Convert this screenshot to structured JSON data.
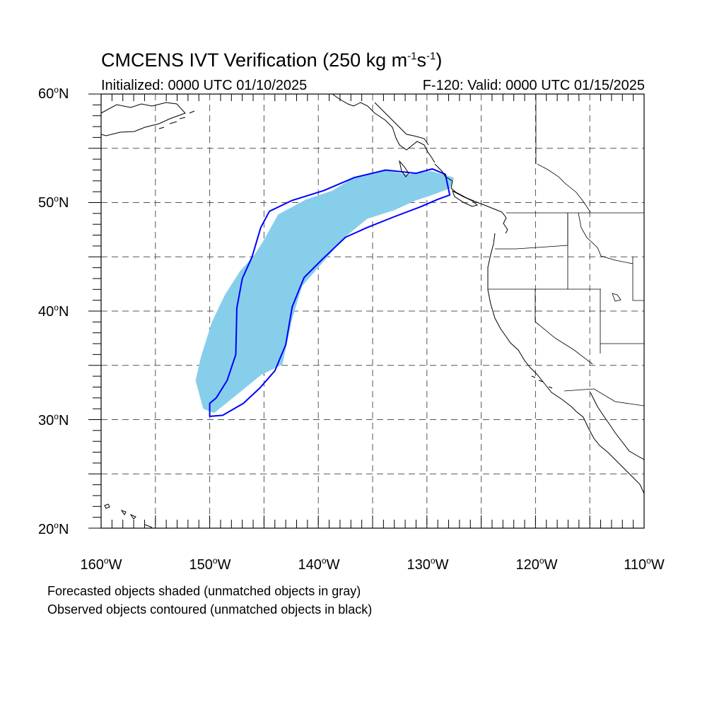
{
  "title": {
    "prefix": "CMCENS IVT Verification (250 kg m",
    "exp1": "-1",
    "mid": "s",
    "exp2": "-1",
    "suffix": ")"
  },
  "subtitle_left": "Initialized: 0000 UTC 01/10/2025",
  "subtitle_right": "F-120: Valid: 0000 UTC 01/15/2025",
  "axes": {
    "lat_labels": [
      "60",
      "50",
      "40",
      "30",
      "20"
    ],
    "lat_suffix": "N",
    "lon_labels": [
      "160",
      "150",
      "140",
      "130",
      "120",
      "110"
    ],
    "lon_suffix": "W",
    "lat_range": [
      20,
      60
    ],
    "lon_range": [
      -160,
      -110
    ],
    "grid": "dashed every 5 degrees"
  },
  "legend_notes": [
    "Forecasted objects shaded (unmatched objects in gray)",
    "Observed objects contoured (unmatched objects in black)"
  ],
  "colors": {
    "forecast_fill": "#87ceeb",
    "observed_contour": "#0000ff",
    "grid": "#555555",
    "coast": "#000000"
  },
  "chart_data": {
    "type": "map",
    "projection": "cylindrical equidistant",
    "forecast_object": {
      "style": "shaded",
      "matched": true,
      "outline_lonlat": [
        [
          -151.3,
          33.6
        ],
        [
          -150.6,
          31.0
        ],
        [
          -149.6,
          30.6
        ],
        [
          -147.5,
          32.3
        ],
        [
          -145.3,
          34.1
        ],
        [
          -143.3,
          35.1
        ],
        [
          -142.4,
          39.3
        ],
        [
          -141.5,
          42.3
        ],
        [
          -139.4,
          44.7
        ],
        [
          -137.7,
          46.7
        ],
        [
          -135.5,
          48.5
        ],
        [
          -133.0,
          49.3
        ],
        [
          -131.0,
          50.2
        ],
        [
          -129.5,
          50.7
        ],
        [
          -127.9,
          51.3
        ],
        [
          -127.5,
          52.3
        ],
        [
          -129.6,
          52.9
        ],
        [
          -131.8,
          52.6
        ],
        [
          -134.0,
          53.0
        ],
        [
          -136.6,
          52.4
        ],
        [
          -138.7,
          51.1
        ],
        [
          -141.1,
          50.3
        ],
        [
          -143.7,
          48.9
        ],
        [
          -145.1,
          46.4
        ],
        [
          -146.0,
          45.0
        ],
        [
          -147.2,
          43.7
        ],
        [
          -148.6,
          41.5
        ],
        [
          -149.8,
          39.0
        ],
        [
          -150.8,
          35.8
        ]
      ]
    },
    "observed_object": {
      "style": "contoured",
      "matched": true,
      "outline_lonlat": [
        [
          -150.0,
          30.3
        ],
        [
          -148.8,
          30.4
        ],
        [
          -146.9,
          31.5
        ],
        [
          -145.4,
          32.9
        ],
        [
          -144.0,
          34.5
        ],
        [
          -143.0,
          36.9
        ],
        [
          -142.4,
          40.4
        ],
        [
          -141.3,
          43.1
        ],
        [
          -139.6,
          44.8
        ],
        [
          -137.5,
          46.8
        ],
        [
          -135.5,
          47.7
        ],
        [
          -133.0,
          48.7
        ],
        [
          -130.6,
          49.6
        ],
        [
          -129.0,
          50.3
        ],
        [
          -127.9,
          50.7
        ],
        [
          -128.3,
          52.6
        ],
        [
          -129.5,
          53.1
        ],
        [
          -131.0,
          52.7
        ],
        [
          -133.8,
          53.0
        ],
        [
          -136.7,
          52.3
        ],
        [
          -139.5,
          51.1
        ],
        [
          -142.4,
          50.2
        ],
        [
          -144.5,
          49.2
        ],
        [
          -145.3,
          47.7
        ],
        [
          -146.1,
          45.0
        ],
        [
          -147.0,
          43.0
        ],
        [
          -147.5,
          40.3
        ],
        [
          -147.6,
          36.0
        ],
        [
          -148.4,
          33.6
        ],
        [
          -149.4,
          32.0
        ],
        [
          -150.0,
          31.5
        ]
      ]
    }
  }
}
